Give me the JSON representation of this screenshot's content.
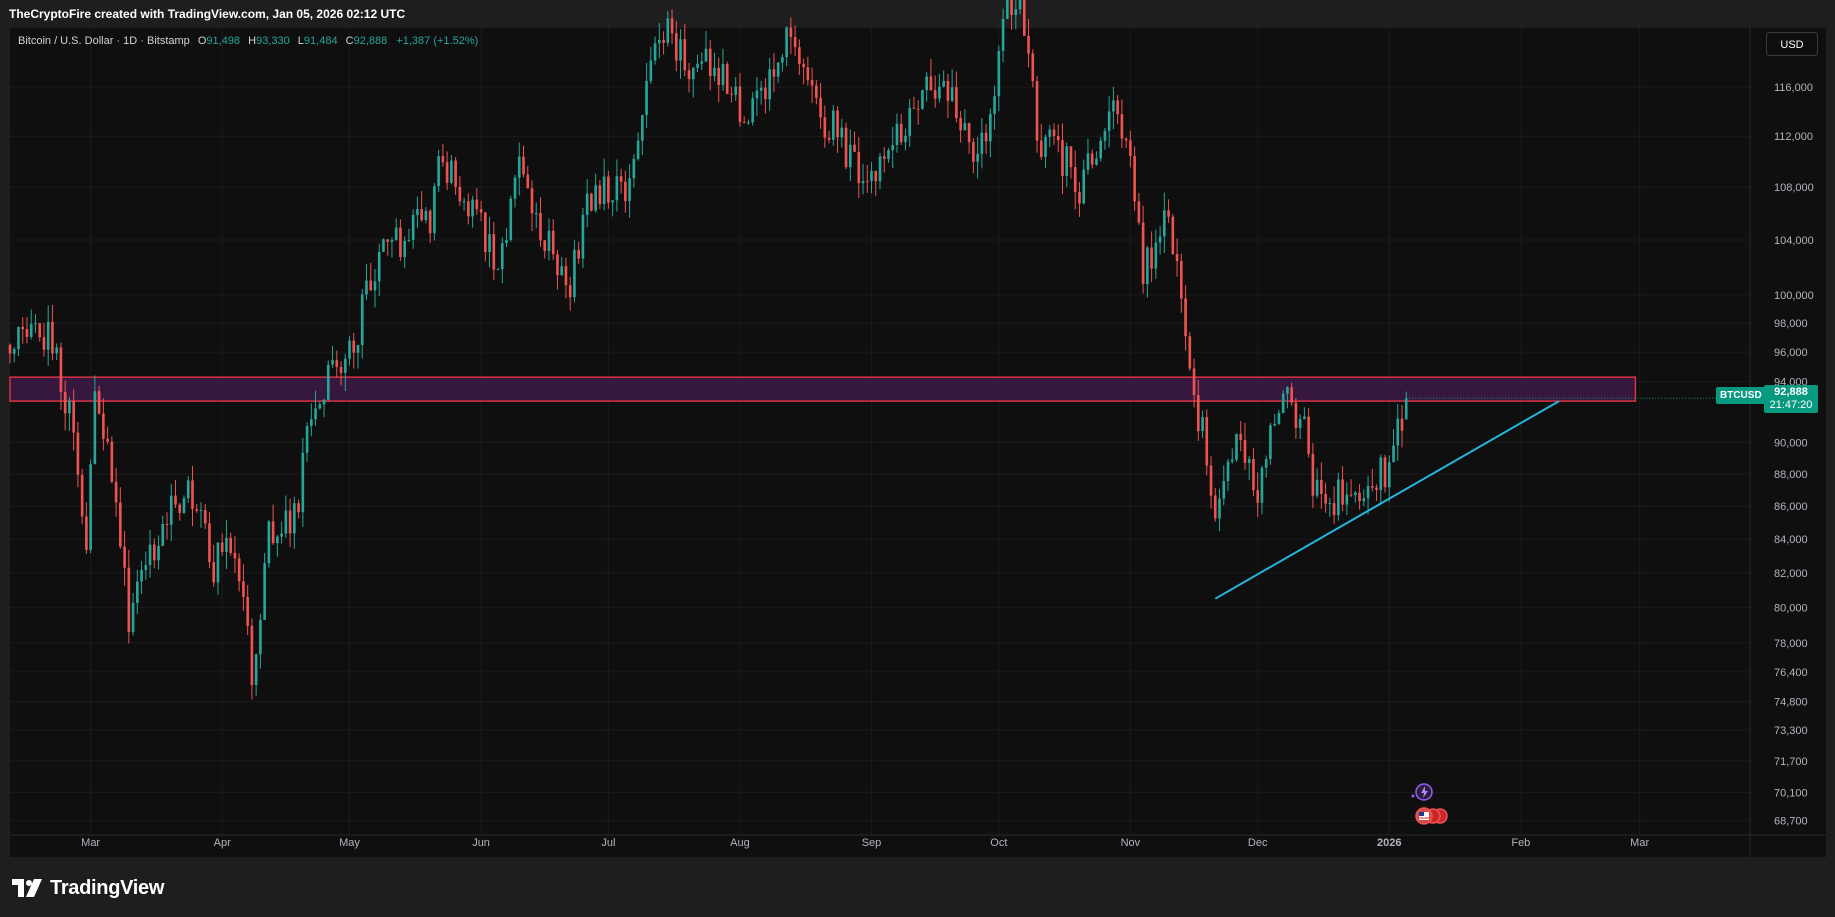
{
  "header": {
    "caption": "TheCryptoFire created with TradingView.com, Jan 05, 2026 02:12 UTC"
  },
  "legend": {
    "title": "Bitcoin / U.S. Dollar · 1D · Bitstamp",
    "open_label": "O",
    "open": "91,498",
    "high_label": "H",
    "high": "93,330",
    "low_label": "L",
    "low": "91,484",
    "close_label": "C",
    "close": "92,888",
    "change": "+1,387 (+1.52%)"
  },
  "toolbar": {
    "currency": "USD"
  },
  "price_tag": {
    "symbol": "BTCUSD",
    "price": "92,888",
    "countdown": "21:47:20"
  },
  "brand": {
    "name": "TradingView",
    "icon": "tradingview-logo-icon"
  },
  "event_markers": {
    "icon_1": "lightning-icon",
    "icon_2": "us-flag-icon"
  },
  "colors": {
    "up": "#26a69a",
    "down": "#ef5350",
    "zone_fill": "#3d1a48",
    "zone_border": "#f23645",
    "trendline": "#22b8e0",
    "background": "#0f0f0f",
    "price_tag": "#089981"
  },
  "chart_data": {
    "type": "candlestick",
    "timeframe": "1D",
    "y_axis": {
      "side": "right",
      "scale": "log",
      "ticks": [
        116000,
        112000,
        108000,
        104000,
        100000,
        98000,
        96000,
        94000,
        90000,
        88000,
        86000,
        84000,
        82000,
        80000,
        78000,
        76400,
        74800,
        73300,
        71700,
        70100,
        68700
      ],
      "tick_labels": [
        "116,000",
        "112,000",
        "108,000",
        "104,000",
        "100,000",
        "98,000",
        "96,000",
        "94,000",
        "90,000",
        "88,000",
        "86,000",
        "84,000",
        "82,000",
        "80,000",
        "78,000",
        "76,400",
        "74,800",
        "73,300",
        "71,700",
        "70,100",
        "68,700"
      ],
      "ylim": [
        68000,
        121000
      ]
    },
    "x_axis": {
      "ticks": [
        "2025-03-01",
        "2025-04-01",
        "2025-05-01",
        "2025-06-01",
        "2025-07-01",
        "2025-08-01",
        "2025-09-01",
        "2025-10-01",
        "2025-11-01",
        "2025-12-01",
        "2026-01-01",
        "2026-02-01",
        "2026-03-01"
      ],
      "tick_labels": [
        "Mar",
        "Apr",
        "May",
        "Jun",
        "Jul",
        "Aug",
        "Sep",
        "Oct",
        "Nov",
        "Dec",
        "2026",
        "Feb",
        "Mar"
      ],
      "xlim": [
        "2025-02-10",
        "2026-03-27"
      ]
    },
    "price_path": [
      [
        "2025-02-10",
        96500
      ],
      [
        "2025-02-20",
        97000
      ],
      [
        "2025-02-24",
        91500
      ],
      [
        "2025-02-28",
        84500
      ],
      [
        "2025-03-02",
        93500
      ],
      [
        "2025-03-06",
        88000
      ],
      [
        "2025-03-10",
        79500
      ],
      [
        "2025-03-16",
        83500
      ],
      [
        "2025-03-24",
        87500
      ],
      [
        "2025-03-30",
        82500
      ],
      [
        "2025-04-04",
        83500
      ],
      [
        "2025-04-08",
        76500
      ],
      [
        "2025-04-12",
        84000
      ],
      [
        "2025-04-18",
        85000
      ],
      [
        "2025-04-22",
        91500
      ],
      [
        "2025-04-26",
        94500
      ],
      [
        "2025-05-02",
        96500
      ],
      [
        "2025-05-08",
        103000
      ],
      [
        "2025-05-14",
        104000
      ],
      [
        "2025-05-20",
        106000
      ],
      [
        "2025-05-22",
        111000
      ],
      [
        "2025-05-26",
        108500
      ],
      [
        "2025-06-01",
        105000
      ],
      [
        "2025-06-05",
        101500
      ],
      [
        "2025-06-10",
        110000
      ],
      [
        "2025-06-14",
        105500
      ],
      [
        "2025-06-22",
        100500
      ],
      [
        "2025-06-26",
        107000
      ],
      [
        "2025-07-02",
        108500
      ],
      [
        "2025-07-06",
        108000
      ],
      [
        "2025-07-10",
        116000
      ],
      [
        "2025-07-14",
        121000
      ],
      [
        "2025-07-20",
        118000
      ],
      [
        "2025-07-28",
        117500
      ],
      [
        "2025-08-02",
        113000
      ],
      [
        "2025-08-08",
        117000
      ],
      [
        "2025-08-13",
        121500
      ],
      [
        "2025-08-20",
        113500
      ],
      [
        "2025-08-24",
        112500
      ],
      [
        "2025-08-30",
        108000
      ],
      [
        "2025-09-05",
        111000
      ],
      [
        "2025-09-12",
        115500
      ],
      [
        "2025-09-18",
        117000
      ],
      [
        "2025-09-25",
        109500
      ],
      [
        "2025-09-29",
        114000
      ],
      [
        "2025-10-03",
        122500
      ],
      [
        "2025-10-06",
        124500
      ],
      [
        "2025-10-10",
        112000
      ],
      [
        "2025-10-14",
        111500
      ],
      [
        "2025-10-20",
        108000
      ],
      [
        "2025-10-27",
        114500
      ],
      [
        "2025-11-01",
        110000
      ],
      [
        "2025-11-04",
        101500
      ],
      [
        "2025-11-10",
        106000
      ],
      [
        "2025-11-14",
        96500
      ],
      [
        "2025-11-18",
        90500
      ],
      [
        "2025-11-21",
        84500
      ],
      [
        "2025-11-26",
        90000
      ],
      [
        "2025-12-01",
        86500
      ],
      [
        "2025-12-05",
        92000
      ],
      [
        "2025-12-09",
        92500
      ],
      [
        "2025-12-12",
        90500
      ],
      [
        "2025-12-15",
        86500
      ],
      [
        "2025-12-18",
        86000
      ],
      [
        "2025-12-23",
        87500
      ],
      [
        "2025-12-27",
        87500
      ],
      [
        "2025-12-31",
        88000
      ],
      [
        "2026-01-03",
        90500
      ],
      [
        "2026-01-05",
        92888
      ]
    ],
    "last_candle": {
      "date": "2026-01-05",
      "open": 91498,
      "high": 93330,
      "low": 91484,
      "close": 92888
    },
    "drawings": {
      "zone": {
        "x0": "2025-02-10",
        "x1": "2026-02-28",
        "y0": 92700,
        "y1": 94300
      },
      "trendline": {
        "x0": "2025-11-21",
        "y0": 80500,
        "x1": "2026-02-10",
        "y1": 92700
      }
    },
    "grid": true,
    "legend_position": "top-left"
  }
}
